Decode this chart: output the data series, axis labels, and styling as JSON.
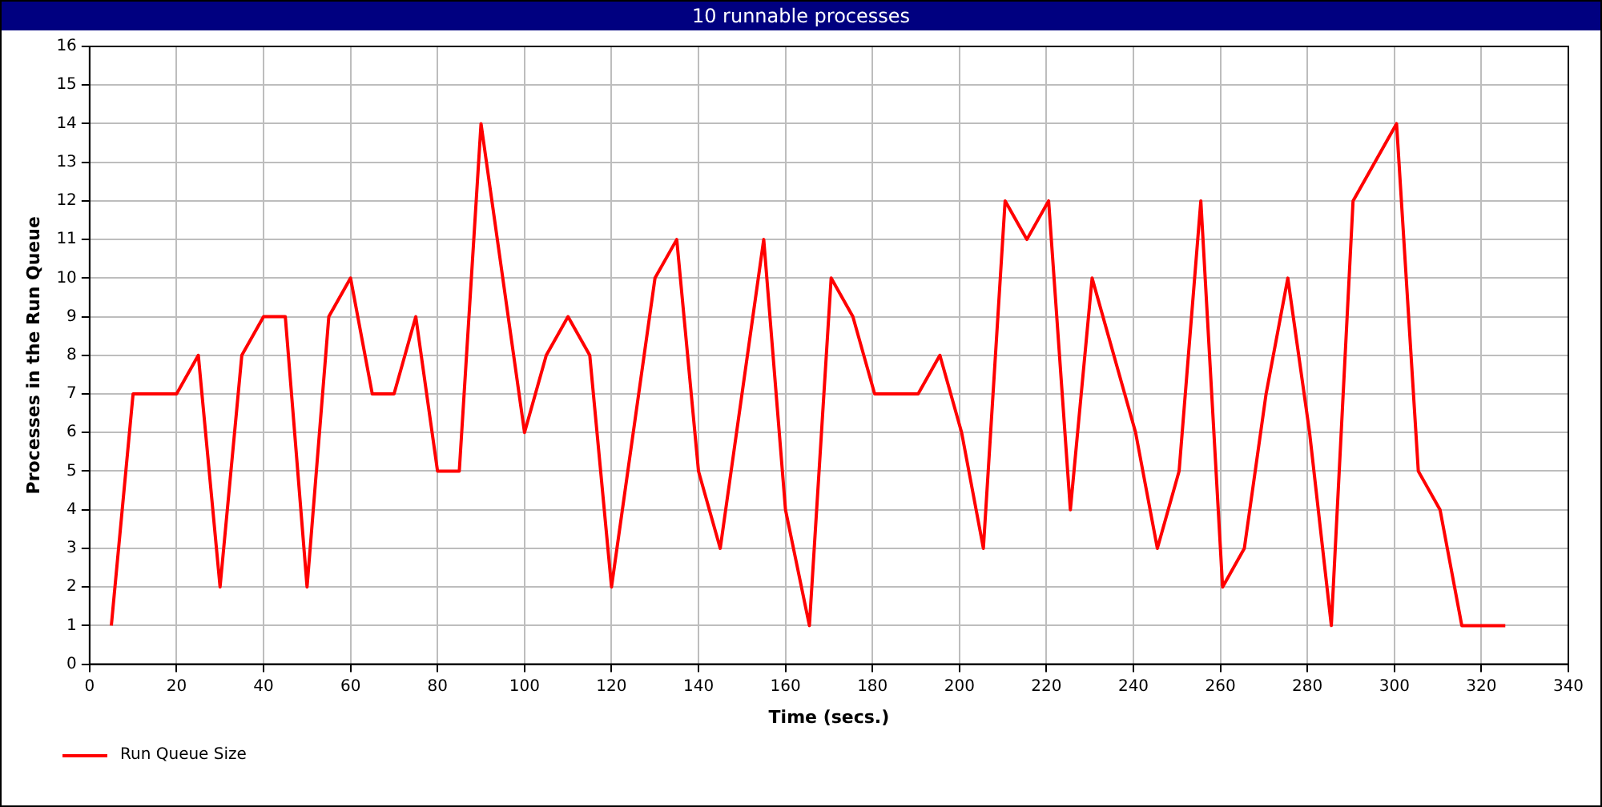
{
  "chart_data": {
    "type": "line",
    "title": "10 runnable processes",
    "xlabel": "Time (secs.)",
    "ylabel": "Processes in the Run Queue",
    "xlim": [
      0,
      340
    ],
    "xticks": [
      0,
      20,
      40,
      60,
      80,
      100,
      120,
      140,
      160,
      180,
      200,
      220,
      240,
      260,
      280,
      300,
      320,
      340
    ],
    "ylim": [
      0,
      16
    ],
    "yticks": [
      0,
      1,
      2,
      3,
      4,
      5,
      6,
      7,
      8,
      9,
      10,
      11,
      12,
      13,
      14,
      15,
      16
    ],
    "grid": true,
    "legend": "bottom left",
    "marker": "none",
    "line_style": "solid",
    "series": [
      {
        "name": "Run Queue Size",
        "color": "#ff0000",
        "x": [
          5,
          10,
          20,
          25,
          30,
          35,
          40,
          45,
          50,
          55,
          60,
          65,
          70,
          75,
          80,
          85,
          90,
          100,
          105,
          110,
          115,
          120,
          130,
          135,
          140,
          145,
          155,
          160,
          165.5,
          170.5,
          175.5,
          180.5,
          190.5,
          195.5,
          200.5,
          205.5,
          210.5,
          215.5,
          220.5,
          225.5,
          230.5,
          240.5,
          245.5,
          250.5,
          255.5,
          260.5,
          265.5,
          270.5,
          275.5,
          280.5,
          285.5,
          290.5,
          300.5,
          305.5,
          310.5,
          315.5,
          325.5
        ],
        "values": [
          1,
          7,
          7,
          8,
          2,
          8,
          9,
          9,
          2,
          9,
          10,
          7,
          7,
          9,
          5,
          5,
          14,
          6,
          8,
          9,
          8,
          2,
          10,
          11,
          5,
          3,
          11,
          4,
          1,
          10,
          9,
          7,
          7,
          8,
          6,
          3,
          12,
          11,
          12,
          4,
          10,
          6,
          3,
          5,
          12,
          2,
          3,
          7,
          10,
          6,
          1,
          12,
          14,
          5,
          4,
          1,
          1
        ]
      }
    ]
  }
}
